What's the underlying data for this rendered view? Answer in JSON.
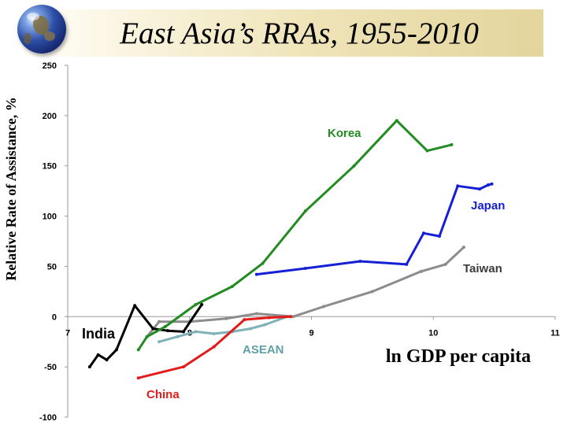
{
  "slide": {
    "title": "East Asia’s RRAs, 1955-2010"
  },
  "colors": {
    "Korea": "#228B22",
    "Japan": "#1520D6",
    "Taiwan": "#8C8C8C",
    "China": "#E21B1B",
    "India": "#000000",
    "ASEAN": "#7FB2B8"
  },
  "chart_data": {
    "type": "line",
    "title": "",
    "xlabel": "ln GDP per capita",
    "ylabel": "Relative Rate of Assistance, %",
    "xlim": [
      7,
      11
    ],
    "ylim": [
      -100,
      250
    ],
    "x_ticks": [
      7,
      8,
      9,
      10,
      11
    ],
    "y_ticks": [
      250,
      200,
      150,
      100,
      50,
      0,
      -50,
      -100
    ],
    "grid": false,
    "legend": "inline labels",
    "series": [
      {
        "name": "Korea",
        "x": [
          7.58,
          7.65,
          7.8,
          8.05,
          8.35,
          8.6,
          8.95,
          9.35,
          9.7,
          9.95,
          10.15
        ],
        "y": [
          -33,
          -20,
          -10,
          12,
          30,
          53,
          105,
          150,
          195,
          165,
          171
        ]
      },
      {
        "name": "Japan",
        "x": [
          8.55,
          8.95,
          9.4,
          9.78,
          9.92,
          10.05,
          10.2,
          10.38,
          10.45,
          10.48
        ],
        "y": [
          42,
          48,
          55,
          52,
          83,
          80,
          130,
          127,
          131,
          132
        ]
      },
      {
        "name": "Taiwan",
        "x": [
          7.65,
          7.75,
          8.0,
          8.3,
          8.55,
          8.85,
          9.1,
          9.5,
          9.9,
          10.1,
          10.25
        ],
        "y": [
          -20,
          -5,
          -5,
          -2,
          3,
          0,
          10,
          25,
          45,
          52,
          69
        ]
      },
      {
        "name": "China",
        "x": [
          7.58,
          7.95,
          8.2,
          8.45,
          8.65,
          8.83
        ],
        "y": [
          -61,
          -50,
          -30,
          -3,
          -1,
          0
        ]
      },
      {
        "name": "India",
        "x": [
          7.18,
          7.25,
          7.32,
          7.4,
          7.55,
          7.7,
          7.82,
          7.95,
          8.1
        ],
        "y": [
          -50,
          -38,
          -43,
          -33,
          11,
          -12,
          -14,
          -15,
          12
        ]
      },
      {
        "name": "ASEAN",
        "x": [
          7.75,
          7.9,
          8.05,
          8.2,
          8.35,
          8.5,
          8.62,
          8.8
        ],
        "y": [
          -25,
          -20,
          -15,
          -17,
          -15,
          -12,
          -8,
          0
        ]
      }
    ],
    "series_labels": [
      {
        "name": "Korea",
        "text": "Korea"
      },
      {
        "name": "Japan",
        "text": "Japan"
      },
      {
        "name": "Taiwan",
        "text": "Taiwan"
      },
      {
        "name": "China",
        "text": "China"
      },
      {
        "name": "India",
        "text": "India"
      },
      {
        "name": "ASEAN",
        "text": "ASEAN"
      }
    ]
  }
}
